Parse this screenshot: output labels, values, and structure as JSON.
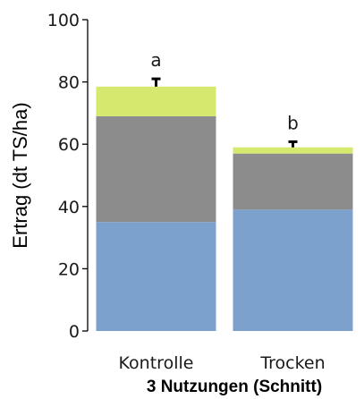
{
  "chart_data": {
    "type": "bar",
    "stacked": true,
    "categories": [
      "Kontrolle",
      "Trocken"
    ],
    "series": [
      {
        "values": [
          35,
          39
        ],
        "color": "#7ba1cc"
      },
      {
        "values": [
          34,
          18
        ],
        "color": "#8c8c8c"
      },
      {
        "values": [
          9.5,
          2
        ],
        "color": "#d6e86e"
      }
    ],
    "error_bars": [
      2.5,
      1.8
    ],
    "significance_labels": [
      "a",
      "b"
    ],
    "ylabel": "Ertrag (dt TS/ha)",
    "xlabel": "3 Nutzungen (Schnitt)",
    "ylim": [
      0,
      100
    ],
    "yticks": [
      "0",
      "20",
      "40",
      "60",
      "80",
      "100"
    ],
    "grid": false
  }
}
